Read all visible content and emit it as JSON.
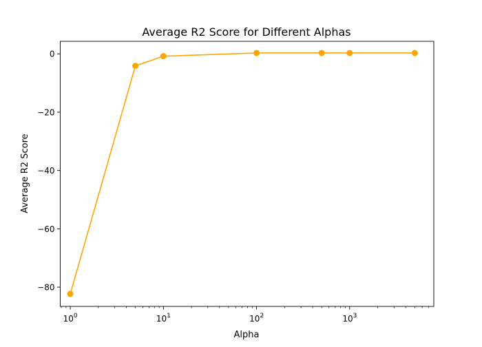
{
  "chart_data": {
    "type": "line",
    "title": "Average R2 Score for Different Alphas",
    "xlabel": "Alpha",
    "ylabel": "Average R2 Score",
    "xscale": "log",
    "xlim": [
      0.78,
      8000
    ],
    "ylim": [
      -86.6,
      4.3
    ],
    "grid": false,
    "legend": "none",
    "x_ticks": [
      {
        "value": 1,
        "base": "10",
        "exp": "0"
      },
      {
        "value": 10,
        "base": "10",
        "exp": "1"
      },
      {
        "value": 100,
        "base": "10",
        "exp": "2"
      },
      {
        "value": 1000,
        "base": "10",
        "exp": "3"
      }
    ],
    "y_ticks": [
      {
        "value": 0,
        "label": "0"
      },
      {
        "value": -20,
        "label": "−20"
      },
      {
        "value": -40,
        "label": "−40"
      },
      {
        "value": -60,
        "label": "−60"
      },
      {
        "value": -80,
        "label": "−80"
      }
    ],
    "series": [
      {
        "color": "#ffa500",
        "marker": "circle",
        "x": [
          1,
          5,
          10,
          100,
          500,
          1000,
          5000
        ],
        "y": [
          -82.3,
          -4.1,
          -0.8,
          0.3,
          0.3,
          0.3,
          0.3
        ]
      }
    ]
  }
}
